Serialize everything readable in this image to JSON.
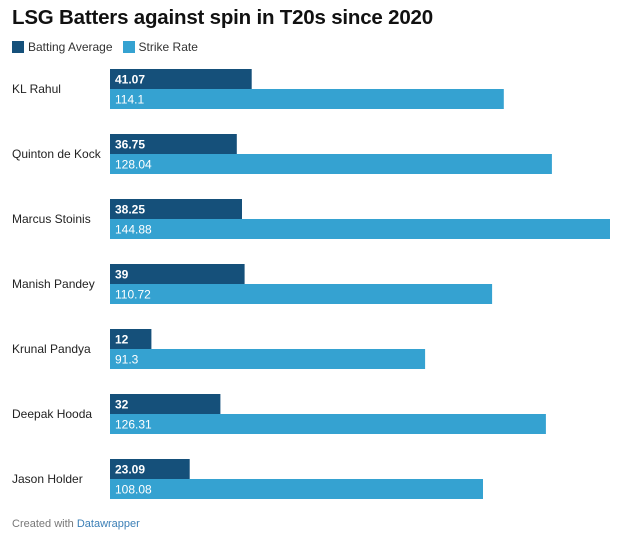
{
  "chart_data": {
    "type": "bar",
    "orientation": "horizontal",
    "title": "LSG Batters against spin in T20s since 2020",
    "categories": [
      "KL Rahul",
      "Quinton de Kock",
      "Marcus Stoinis",
      "Manish Pandey",
      "Krunal Pandya",
      "Deepak Hooda",
      "Jason Holder"
    ],
    "series": [
      {
        "name": "Batting Average",
        "color": "#15507a",
        "values": [
          41.07,
          36.75,
          38.25,
          39,
          12,
          32,
          23.09
        ],
        "labels": [
          "41.07",
          "36.75",
          "38.25",
          "39",
          "12",
          "32",
          "23.09"
        ]
      },
      {
        "name": "Strike Rate",
        "color": "#35a2d1",
        "values": [
          114.1,
          128.04,
          144.88,
          110.72,
          91.3,
          126.31,
          108.08
        ],
        "labels": [
          "114.1",
          "128.04",
          "144.88",
          "110.72",
          "91.3",
          "126.31",
          "108.08"
        ]
      }
    ],
    "xlim": [
      0,
      144.88
    ],
    "grid": false,
    "legend": "top-left"
  },
  "footer": {
    "prefix": "Created with",
    "brand": "Datawrapper"
  }
}
